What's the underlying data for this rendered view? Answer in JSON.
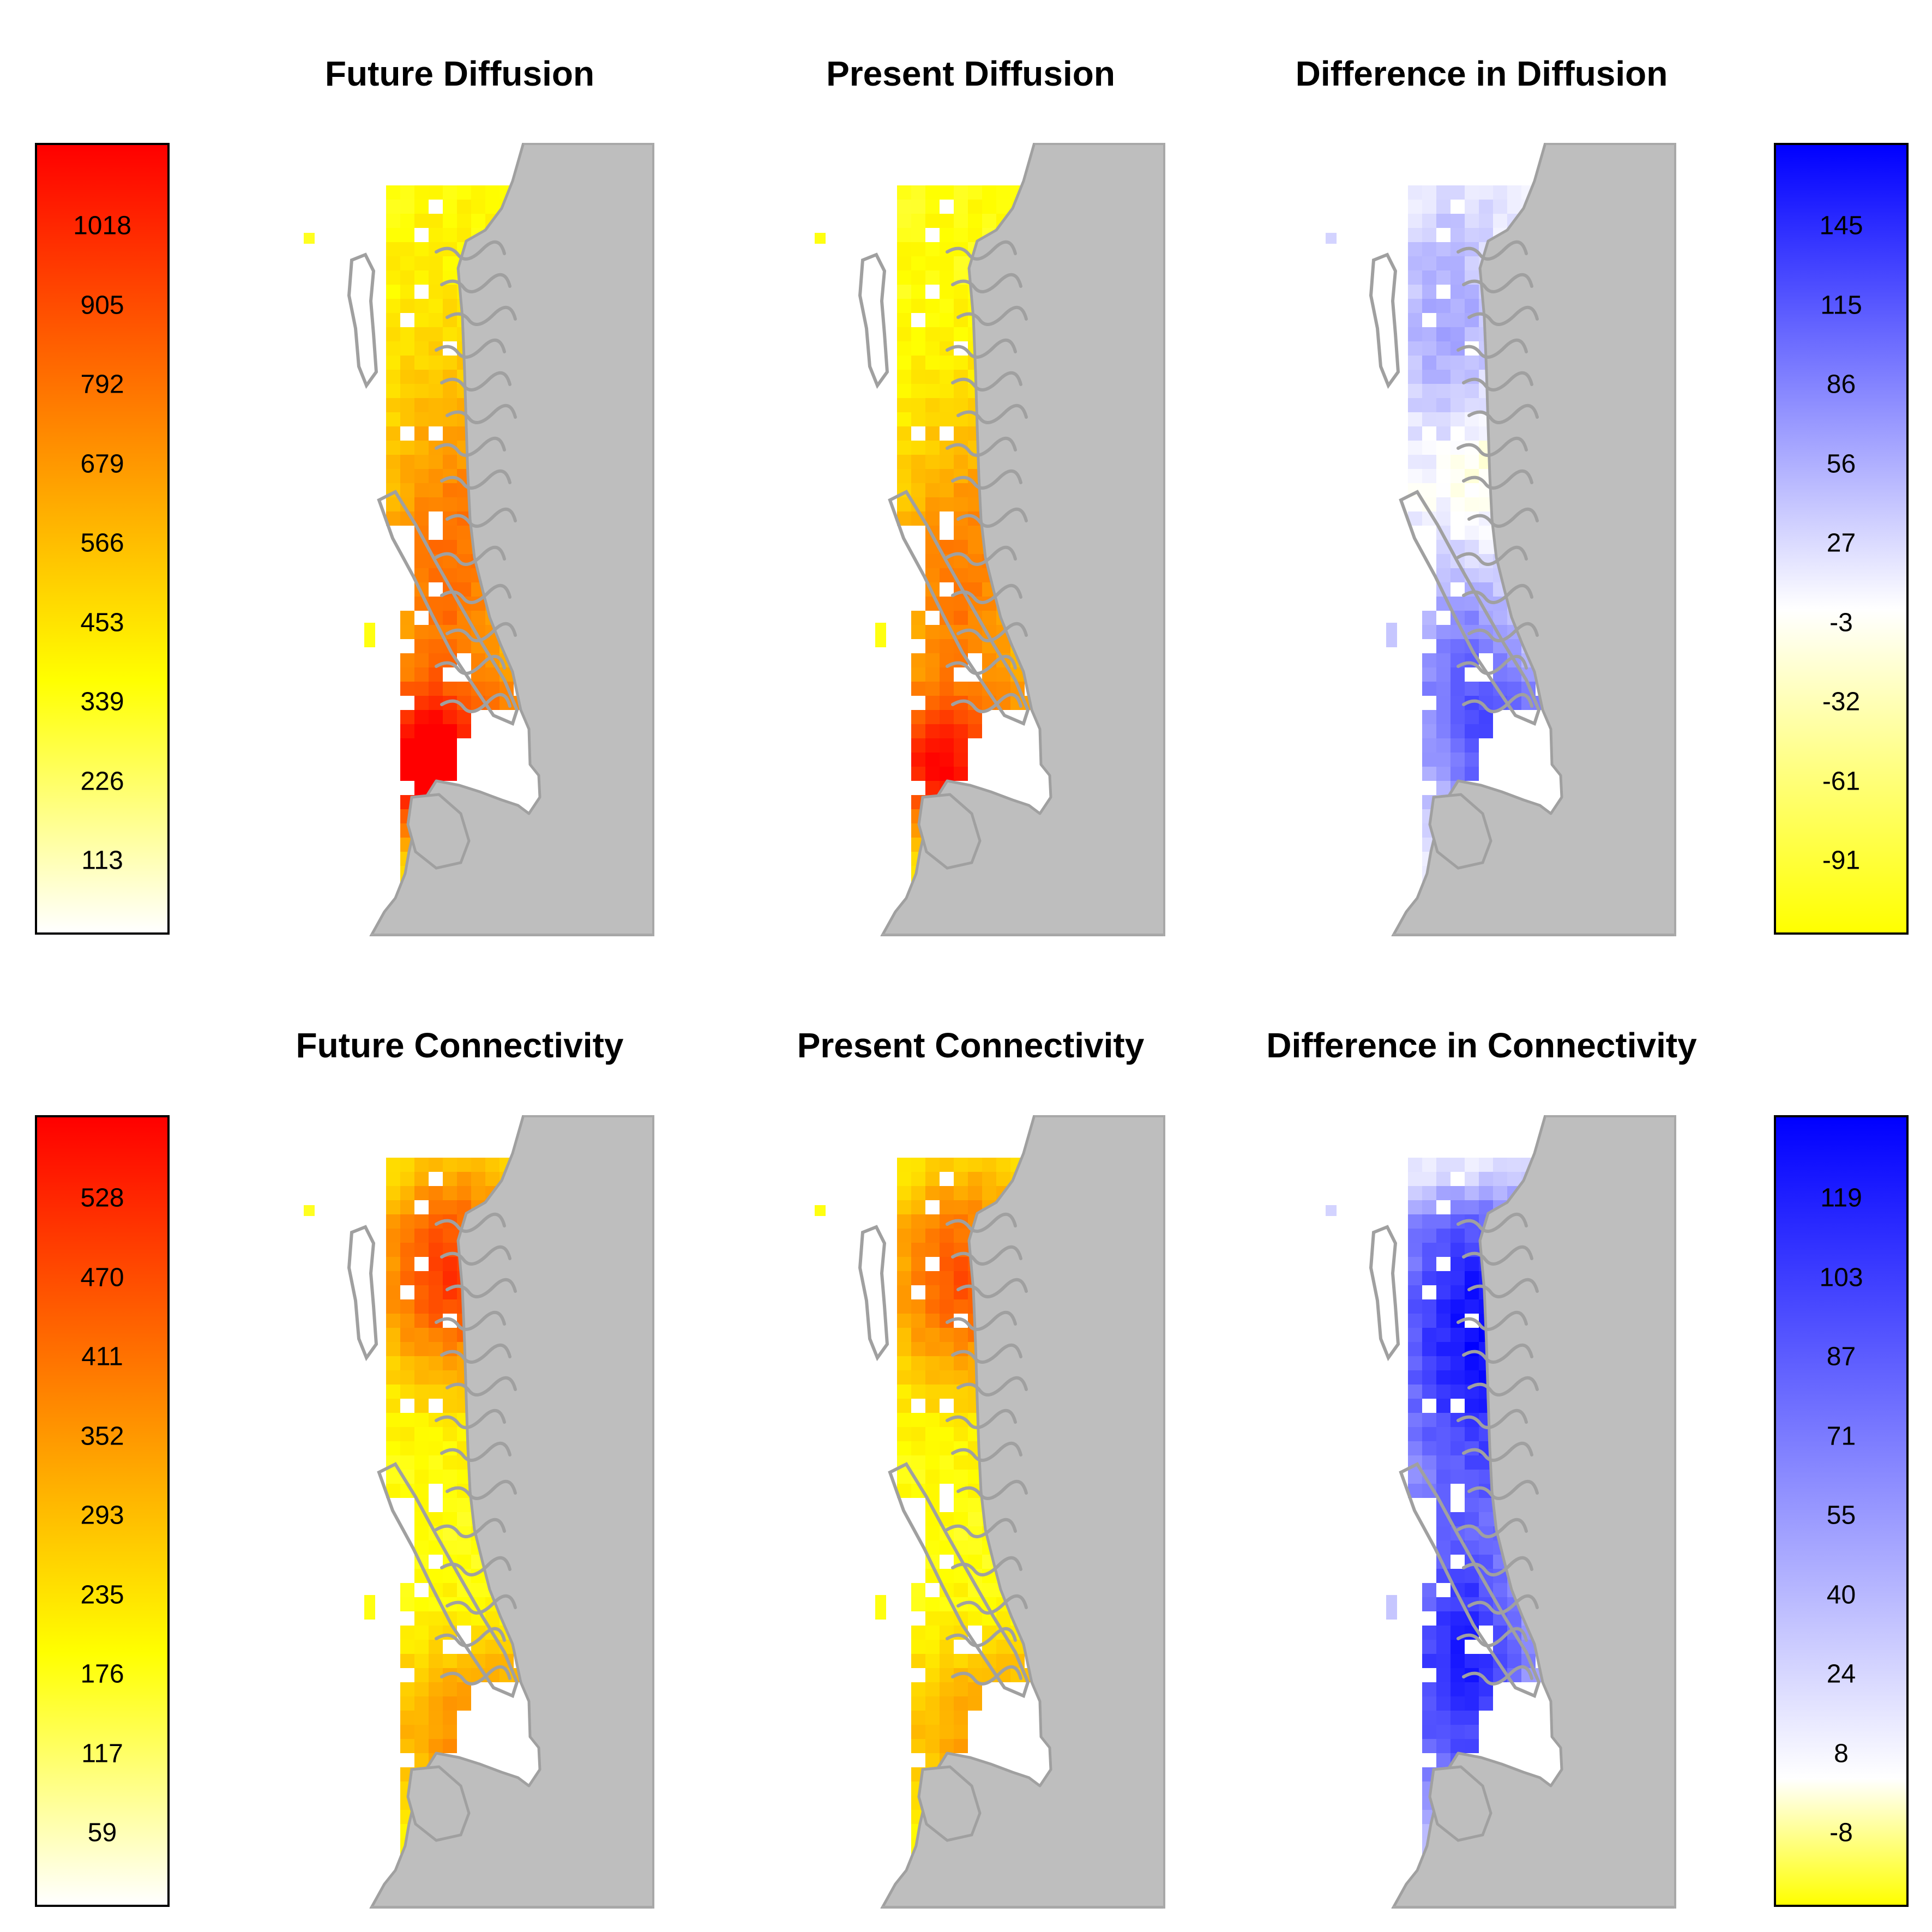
{
  "panels": {
    "future_diffusion": {
      "title": "Future Diffusion"
    },
    "present_diffusion": {
      "title": "Present Diffusion"
    },
    "difference_diffusion": {
      "title": "Difference in Diffusion"
    },
    "future_connectivity": {
      "title": "Future Connectivity"
    },
    "present_connectivity": {
      "title": "Present Connectivity"
    },
    "difference_connectivity": {
      "title": "Difference in Connectivity"
    }
  },
  "legends": {
    "diffusion_values": {
      "ticks": [
        "1018",
        "905",
        "792",
        "679",
        "566",
        "453",
        "339",
        "226",
        "113"
      ],
      "colors": [
        "#ff0000",
        "#ffff00",
        "#ffffff"
      ]
    },
    "diffusion_difference": {
      "ticks": [
        "145",
        "115",
        "86",
        "56",
        "27",
        "-3",
        "-32",
        "-61",
        "-91"
      ],
      "colors": [
        "#0000ff",
        "#ffffff",
        "#ffff00"
      ]
    },
    "connectivity_values": {
      "ticks": [
        "528",
        "470",
        "411",
        "352",
        "293",
        "235",
        "176",
        "117",
        "59"
      ],
      "colors": [
        "#ff0000",
        "#ffff00",
        "#ffffff"
      ]
    },
    "connectivity_difference": {
      "ticks": [
        "119",
        "103",
        "87",
        "71",
        "55",
        "40",
        "24",
        "8",
        "-8"
      ],
      "colors": [
        "#0000ff",
        "#ffffff",
        "#ffff00"
      ]
    }
  },
  "map_colors": {
    "land": "#bebebe",
    "coastline": "#a0a0a0",
    "frame": "#a8a8a8"
  }
}
